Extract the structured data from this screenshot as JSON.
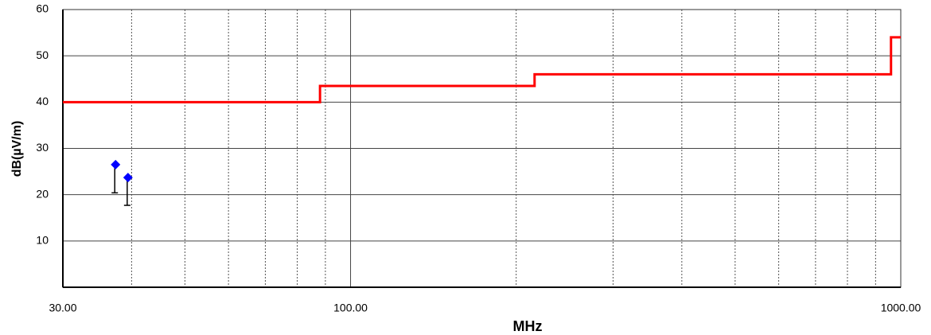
{
  "chart_data": {
    "type": "line",
    "xlabel": "MHz",
    "ylabel": "dB(µV/m)",
    "xscale": "log",
    "xlim": [
      30,
      1000
    ],
    "ylim": [
      0,
      60
    ],
    "xticks": [
      {
        "value": 30,
        "label": "30.00"
      },
      {
        "value": 100,
        "label": "100.00"
      },
      {
        "value": 1000,
        "label": "1000.00"
      }
    ],
    "xminor": [
      40,
      50,
      60,
      70,
      80,
      90,
      200,
      300,
      400,
      500,
      600,
      700,
      800,
      900
    ],
    "yticks": [
      10,
      20,
      30,
      40,
      50,
      60
    ],
    "grid": true,
    "series": [
      {
        "type": "line",
        "color": "#ff0000",
        "x": [
          30,
          88,
          88,
          216,
          216,
          960,
          960,
          1000
        ],
        "values": [
          40,
          40,
          43.5,
          43.5,
          46,
          46,
          54,
          54
        ]
      },
      {
        "type": "scatter",
        "color": "#0000ff",
        "x": [
          37.4,
          39.4
        ],
        "values": [
          26.5,
          23.7
        ],
        "errors": [
          6.1,
          6.0
        ]
      }
    ]
  }
}
